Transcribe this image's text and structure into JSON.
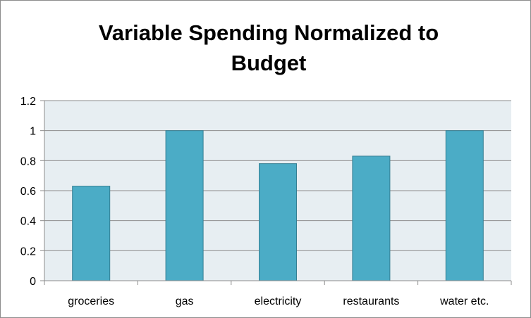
{
  "chart_data": {
    "type": "bar",
    "title": "Variable Spending Normalized to Budget",
    "xlabel": "",
    "ylabel": "",
    "categories": [
      "groceries",
      "gas",
      "electricity",
      "restaurants",
      "water etc."
    ],
    "values": [
      0.63,
      1.0,
      0.78,
      0.83,
      1.0
    ],
    "ylim": [
      0,
      1.2
    ],
    "yticks": [
      "0",
      "0.2",
      "0.4",
      "0.6",
      "0.8",
      "1",
      "1.2"
    ],
    "grid": true,
    "legend": "none",
    "colors": {
      "bar_fill": "#4bacc6",
      "bar_stroke": "#357f93",
      "plot_background": "#e7eef2",
      "gridline": "#8c8c8c",
      "axis": "#8c8c8c"
    }
  }
}
